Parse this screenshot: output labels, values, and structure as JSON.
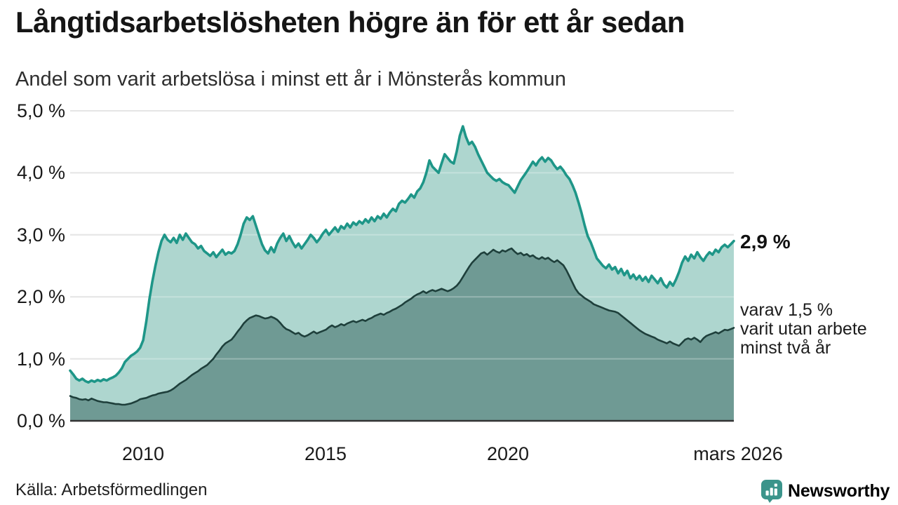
{
  "header": {
    "title": "Långtidsarbetslösheten högre än för ett år sedan",
    "subtitle": "Andel som varit arbetslösa i minst ett år i Mönsterås kommun"
  },
  "annotations": {
    "latest_total": "2,9 %",
    "secondary_line1": "varav 1,5 %",
    "secondary_line2": "varit utan arbete",
    "secondary_line3": "minst två år"
  },
  "footer": {
    "source": "Källa: Arbetsförmedlingen",
    "brand": "Newsworthy"
  },
  "colors": {
    "accent_line": "#1e9688",
    "accent_fill": "#aed6cf",
    "dark_line": "#1e3f3b",
    "dark_fill": "#6f9a94",
    "grid": "#dcdcdc",
    "grid_overlay": "rgba(255,255,255,0.28)",
    "baseline": "#333333",
    "brand": "#3b948b"
  },
  "chart_data": {
    "type": "area",
    "title": "Långtidsarbetslösheten högre än för ett år sedan",
    "subtitle": "Andel som varit arbetslösa i minst ett år i Mönsterås kommun",
    "unit": "%",
    "x_start": "2008-01",
    "x_end": "2026-03",
    "points_per_year": 12,
    "ylim": [
      0,
      5
    ],
    "grid": true,
    "y_tick_labels": [
      "0,0 %",
      "1,0 %",
      "2,0 %",
      "3,0 %",
      "4,0 %",
      "5,0 %"
    ],
    "x_ticks": [
      {
        "label": "2010",
        "year": 2010
      },
      {
        "label": "2015",
        "year": 2015
      },
      {
        "label": "2020",
        "year": 2020
      },
      {
        "label": "mars 2026",
        "year": 2026.17
      }
    ],
    "latest_values": {
      "minst_ett_ar": 2.9,
      "minst_tva_ar": 1.5
    },
    "series": [
      {
        "name": "arbetslösa minst ett år",
        "line_color": "#1e9688",
        "fill_color": "#aed6cf",
        "values": [
          0.81,
          0.75,
          0.68,
          0.65,
          0.68,
          0.64,
          0.62,
          0.65,
          0.63,
          0.66,
          0.64,
          0.67,
          0.65,
          0.68,
          0.7,
          0.73,
          0.78,
          0.85,
          0.95,
          1.0,
          1.05,
          1.08,
          1.12,
          1.18,
          1.3,
          1.6,
          1.95,
          2.25,
          2.5,
          2.72,
          2.9,
          3.0,
          2.92,
          2.88,
          2.95,
          2.87,
          3.0,
          2.92,
          3.02,
          2.95,
          2.88,
          2.85,
          2.78,
          2.82,
          2.74,
          2.7,
          2.66,
          2.72,
          2.64,
          2.7,
          2.76,
          2.68,
          2.72,
          2.7,
          2.74,
          2.85,
          3.0,
          3.18,
          3.28,
          3.24,
          3.3,
          3.15,
          3.0,
          2.85,
          2.75,
          2.7,
          2.8,
          2.72,
          2.86,
          2.95,
          3.02,
          2.9,
          2.98,
          2.88,
          2.8,
          2.86,
          2.78,
          2.85,
          2.92,
          3.0,
          2.95,
          2.88,
          2.94,
          3.02,
          3.08,
          3.0,
          3.06,
          3.12,
          3.05,
          3.14,
          3.1,
          3.18,
          3.12,
          3.2,
          3.16,
          3.22,
          3.18,
          3.25,
          3.2,
          3.28,
          3.22,
          3.3,
          3.26,
          3.34,
          3.28,
          3.36,
          3.42,
          3.38,
          3.5,
          3.55,
          3.52,
          3.58,
          3.65,
          3.6,
          3.7,
          3.75,
          3.85,
          4.0,
          4.2,
          4.1,
          4.05,
          4.0,
          4.15,
          4.3,
          4.24,
          4.18,
          4.15,
          4.35,
          4.6,
          4.75,
          4.58,
          4.46,
          4.5,
          4.42,
          4.3,
          4.2,
          4.1,
          4.0,
          3.95,
          3.9,
          3.87,
          3.9,
          3.85,
          3.82,
          3.8,
          3.74,
          3.68,
          3.78,
          3.88,
          3.95,
          4.02,
          4.1,
          4.18,
          4.12,
          4.2,
          4.25,
          4.18,
          4.24,
          4.2,
          4.12,
          4.06,
          4.1,
          4.04,
          3.96,
          3.9,
          3.8,
          3.68,
          3.52,
          3.35,
          3.15,
          2.98,
          2.88,
          2.75,
          2.62,
          2.56,
          2.5,
          2.46,
          2.52,
          2.44,
          2.48,
          2.38,
          2.45,
          2.35,
          2.42,
          2.3,
          2.36,
          2.28,
          2.34,
          2.26,
          2.32,
          2.24,
          2.34,
          2.28,
          2.22,
          2.3,
          2.2,
          2.15,
          2.24,
          2.18,
          2.28,
          2.4,
          2.55,
          2.65,
          2.58,
          2.68,
          2.62,
          2.72,
          2.64,
          2.58,
          2.66,
          2.72,
          2.68,
          2.76,
          2.72,
          2.8,
          2.84,
          2.8,
          2.85,
          2.9
        ]
      },
      {
        "name": "varav arbetslösa minst två år",
        "line_color": "#1e3f3b",
        "fill_color": "#6f9a94",
        "values": [
          0.4,
          0.38,
          0.37,
          0.35,
          0.34,
          0.35,
          0.33,
          0.36,
          0.34,
          0.32,
          0.31,
          0.3,
          0.3,
          0.29,
          0.28,
          0.27,
          0.27,
          0.26,
          0.26,
          0.27,
          0.28,
          0.3,
          0.32,
          0.35,
          0.36,
          0.37,
          0.39,
          0.41,
          0.42,
          0.44,
          0.45,
          0.46,
          0.47,
          0.49,
          0.52,
          0.56,
          0.6,
          0.63,
          0.66,
          0.7,
          0.74,
          0.77,
          0.8,
          0.84,
          0.87,
          0.9,
          0.95,
          1.0,
          1.07,
          1.13,
          1.2,
          1.25,
          1.28,
          1.31,
          1.37,
          1.44,
          1.5,
          1.57,
          1.62,
          1.66,
          1.68,
          1.7,
          1.69,
          1.67,
          1.65,
          1.66,
          1.68,
          1.66,
          1.63,
          1.58,
          1.52,
          1.48,
          1.46,
          1.43,
          1.4,
          1.42,
          1.38,
          1.36,
          1.38,
          1.41,
          1.44,
          1.41,
          1.43,
          1.45,
          1.47,
          1.51,
          1.54,
          1.51,
          1.53,
          1.56,
          1.54,
          1.57,
          1.59,
          1.61,
          1.59,
          1.61,
          1.63,
          1.61,
          1.64,
          1.66,
          1.69,
          1.71,
          1.73,
          1.71,
          1.74,
          1.76,
          1.79,
          1.81,
          1.84,
          1.87,
          1.91,
          1.94,
          1.97,
          2.01,
          2.04,
          2.06,
          2.09,
          2.06,
          2.09,
          2.11,
          2.09,
          2.11,
          2.13,
          2.11,
          2.09,
          2.11,
          2.14,
          2.18,
          2.24,
          2.32,
          2.4,
          2.48,
          2.55,
          2.6,
          2.65,
          2.7,
          2.72,
          2.68,
          2.72,
          2.76,
          2.73,
          2.71,
          2.75,
          2.73,
          2.76,
          2.78,
          2.73,
          2.69,
          2.71,
          2.67,
          2.69,
          2.65,
          2.67,
          2.63,
          2.61,
          2.64,
          2.61,
          2.63,
          2.59,
          2.56,
          2.59,
          2.55,
          2.51,
          2.43,
          2.33,
          2.23,
          2.13,
          2.06,
          2.02,
          1.98,
          1.95,
          1.92,
          1.88,
          1.86,
          1.84,
          1.82,
          1.8,
          1.78,
          1.77,
          1.76,
          1.74,
          1.7,
          1.66,
          1.62,
          1.58,
          1.54,
          1.5,
          1.46,
          1.43,
          1.4,
          1.38,
          1.36,
          1.34,
          1.31,
          1.29,
          1.27,
          1.25,
          1.28,
          1.25,
          1.23,
          1.21,
          1.26,
          1.31,
          1.33,
          1.31,
          1.34,
          1.31,
          1.27,
          1.33,
          1.37,
          1.39,
          1.41,
          1.43,
          1.41,
          1.44,
          1.47,
          1.46,
          1.48,
          1.5
        ]
      }
    ]
  }
}
